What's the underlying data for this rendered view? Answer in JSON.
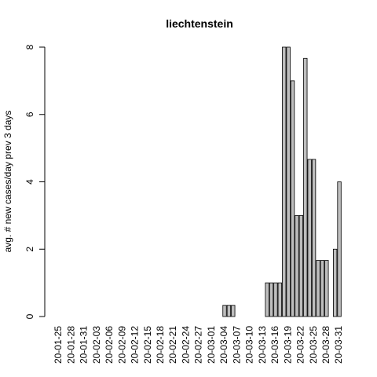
{
  "chart_data": {
    "type": "bar",
    "title": "liechtenstein",
    "y_label": "avg. # new cases/day prev  3  days",
    "categories": [
      "20-01-25",
      null,
      null,
      "20-01-28",
      null,
      null,
      "20-01-31",
      null,
      null,
      "20-02-03",
      null,
      null,
      "20-02-06",
      null,
      null,
      "20-02-09",
      null,
      null,
      "20-02-12",
      null,
      null,
      "20-02-15",
      null,
      null,
      "20-02-18",
      null,
      null,
      "20-02-21",
      null,
      null,
      "20-02-24",
      null,
      null,
      "20-02-27",
      null,
      null,
      "20-03-01",
      null,
      null,
      "20-03-04",
      null,
      null,
      "20-03-07",
      null,
      null,
      "20-03-10",
      null,
      null,
      "20-03-13",
      null,
      null,
      "20-03-16",
      null,
      null,
      "20-03-19",
      null,
      null,
      "20-03-22",
      null,
      null,
      "20-03-25",
      null,
      null,
      "20-03-28",
      null,
      null,
      "20-03-31"
    ],
    "values": [
      0,
      0,
      0,
      0,
      0,
      0,
      0,
      0,
      0,
      0,
      0,
      0,
      0,
      0,
      0,
      0,
      0,
      0,
      0,
      0,
      0,
      0,
      0,
      0,
      0,
      0,
      0,
      0,
      0,
      0,
      0,
      0,
      0,
      0,
      0,
      0,
      0,
      0,
      0,
      0.333,
      0.333,
      0.333,
      0,
      0,
      0,
      0,
      0,
      0,
      0,
      1,
      1,
      1,
      1,
      8,
      8,
      7,
      3,
      3,
      7.667,
      4.667,
      4.667,
      1.667,
      1.667,
      1.667,
      0,
      2,
      4
    ],
    "color": "#bebebe",
    "ylim": [
      0,
      8
    ],
    "yticks": [
      0,
      2,
      4,
      6,
      8
    ]
  }
}
